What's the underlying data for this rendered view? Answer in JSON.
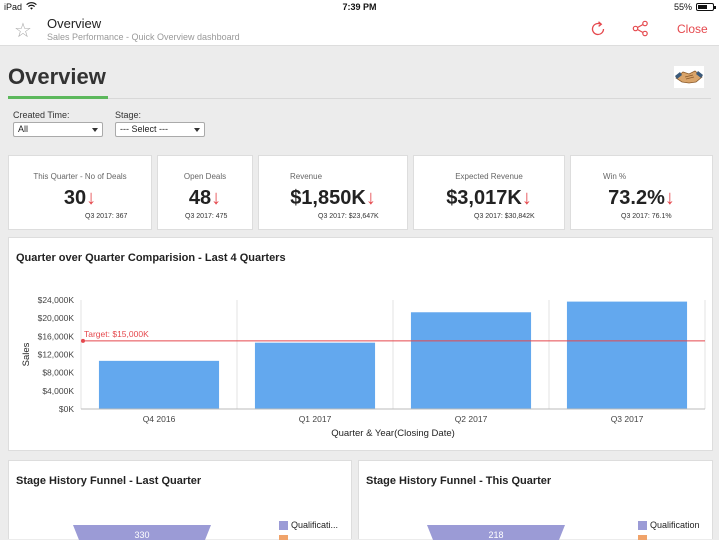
{
  "status": {
    "carrier": "iPad",
    "time": "7:39 PM",
    "battery": "55%"
  },
  "header": {
    "title": "Overview",
    "subtitle": "Sales Performance - Quick Overview dashboard",
    "close_label": "Close"
  },
  "dashboard": {
    "title": "Overview",
    "accent_color": "#5cb85c",
    "filters": [
      {
        "label": "Created Time:",
        "value": "All"
      },
      {
        "label": "Stage:",
        "value": "--- Select ---"
      }
    ],
    "kpis": [
      {
        "label": "This Quarter - No of Deals",
        "value": "30",
        "arrow": "↓",
        "previous": "Q3 2017: 367"
      },
      {
        "label": "Open Deals",
        "value": "48",
        "arrow": "↓",
        "previous": "Q3 2017: 475"
      },
      {
        "label": "Revenue",
        "value": "$1,850K",
        "arrow": "↓",
        "previous": "Q3 2017: $23,647K"
      },
      {
        "label": "Expected Revenue",
        "value": "$3,017K",
        "arrow": "↓",
        "previous": "Q3 2017: $30,842K"
      },
      {
        "label": "Win %",
        "value": "73.2%",
        "arrow": "↓",
        "previous": "Q3 2017: 76.1%"
      }
    ]
  },
  "qoq_panel": {
    "title": "Quarter over Quarter Comparision - Last 4 Quarters"
  },
  "chart_data": {
    "type": "bar",
    "categories": [
      "Q4 2016",
      "Q1 2017",
      "Q2 2017",
      "Q3 2017"
    ],
    "values": [
      10600,
      14600,
      21300,
      23647
    ],
    "xlabel": "Quarter & Year(Closing Date)",
    "ylabel": "Sales",
    "ylim": [
      0,
      24000
    ],
    "yticks": [
      0,
      4000,
      8000,
      12000,
      16000,
      20000,
      24000
    ],
    "ytick_labels": [
      "$0K",
      "$4,000K",
      "$8,000K",
      "$12,000K",
      "$16,000K",
      "$20,000K",
      "$24,000K"
    ],
    "target_value": 15000,
    "target_label": "Target: $15,000K",
    "bar_color": "#63a8ee",
    "target_color": "#e5484d",
    "grid": "vertical"
  },
  "funnels": [
    {
      "title": "Stage History Funnel - Last Quarter",
      "top_value": "330",
      "legend": [
        "Qualificati..."
      ],
      "color": "#9b9bd6"
    },
    {
      "title": "Stage History Funnel - This Quarter",
      "top_value": "218",
      "legend": [
        "Qualification"
      ],
      "color": "#9b9bd6"
    }
  ]
}
